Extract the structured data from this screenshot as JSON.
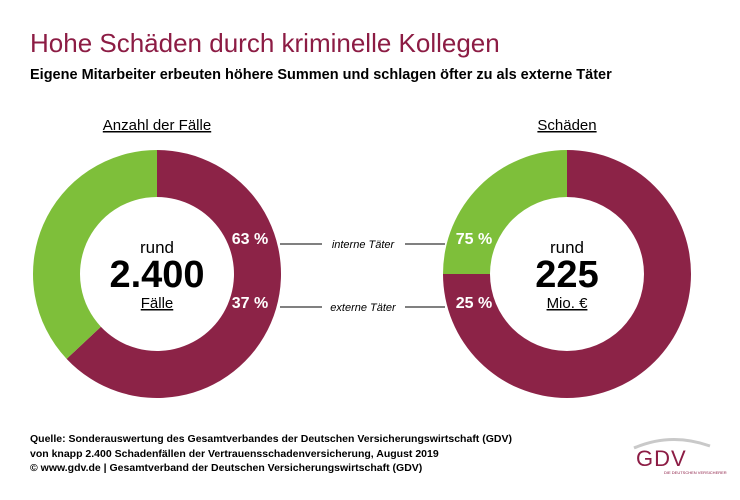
{
  "title": "Hohe Schäden durch kriminelle Kollegen",
  "subtitle": "Eigene Mitarbeiter erbeuten höhere Summen und schlagen öfter zu als externe Täter",
  "colors": {
    "intern": "#8c2347",
    "extern": "#7ebf3a",
    "title": "#8c1c44"
  },
  "chart_data": [
    {
      "type": "pie",
      "title": "Anzahl der Fälle",
      "center": {
        "top": "rund",
        "value": "2.400",
        "unit": "Fälle"
      },
      "categories": [
        "interne Täter",
        "externe Täter"
      ],
      "values": [
        63,
        37
      ],
      "value_labels": [
        "63 %",
        "37 %"
      ]
    },
    {
      "type": "pie",
      "title": "Schäden",
      "center": {
        "top": "rund",
        "value": "225",
        "unit": "Mio. €"
      },
      "categories": [
        "interne Täter",
        "externe Täter"
      ],
      "values": [
        75,
        25
      ],
      "value_labels": [
        "75 %",
        "25 %"
      ]
    }
  ],
  "legend": {
    "intern": "interne Täter",
    "extern": "externe Täter"
  },
  "footer": {
    "line1": "Quelle: Sonderauswertung des Gesamtverbandes der Deutschen Versicherungswirtschaft (GDV)",
    "line2": "von knapp 2.400 Schadenfällen der Vertrauensschadenversicherung, August 2019",
    "line3": "© www.gdv.de | Gesamtverband der Deutschen Versicherungswirtschaft (GDV)"
  },
  "logo": {
    "text": "GDV",
    "sub": "DIE DEUTSCHEN VERSICHERER"
  }
}
